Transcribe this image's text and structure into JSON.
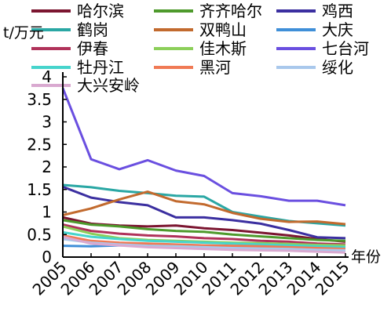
{
  "chart_data": {
    "type": "line",
    "ylabel": "t/万元",
    "xlabel": "年份",
    "x": [
      "2005",
      "2006",
      "2007",
      "2008",
      "2009",
      "2010",
      "2011",
      "2012",
      "2013",
      "2014",
      "2015"
    ],
    "yticks": [
      "0",
      "0.5",
      "1",
      "1.5",
      "2",
      "2.5",
      "3",
      "3.5",
      "4"
    ],
    "ylim": [
      0,
      4
    ],
    "grid": false,
    "legend_position": "top",
    "series": [
      {
        "name": "哈尔滨",
        "color": "#7b1530",
        "values": [
          0.88,
          0.74,
          0.7,
          0.68,
          0.7,
          0.64,
          0.6,
          0.54,
          0.48,
          0.4,
          0.34
        ]
      },
      {
        "name": "齐齐哈尔",
        "color": "#4e9a2c",
        "values": [
          0.82,
          0.72,
          0.68,
          0.62,
          0.58,
          0.56,
          0.5,
          0.46,
          0.42,
          0.38,
          0.36
        ]
      },
      {
        "name": "鸡西",
        "color": "#3b2fa0",
        "values": [
          1.56,
          1.32,
          1.22,
          1.15,
          0.88,
          0.88,
          0.82,
          0.74,
          0.6,
          0.44,
          0.42
        ]
      },
      {
        "name": "鹤岗",
        "color": "#2aa7a4",
        "values": [
          1.6,
          1.55,
          1.47,
          1.42,
          1.36,
          1.34,
          1.0,
          0.9,
          0.8,
          0.75,
          0.7
        ]
      },
      {
        "name": "双鸭山",
        "color": "#c26a2e",
        "values": [
          0.93,
          1.08,
          1.28,
          1.45,
          1.24,
          1.17,
          0.98,
          0.85,
          0.78,
          0.79,
          0.73
        ]
      },
      {
        "name": "大庆",
        "color": "#3f8fd8",
        "values": [
          0.25,
          0.24,
          0.26,
          0.27,
          0.26,
          0.25,
          0.24,
          0.23,
          0.22,
          0.21,
          0.2
        ]
      },
      {
        "name": "伊春",
        "color": "#b0325a",
        "values": [
          0.72,
          0.58,
          0.52,
          0.48,
          0.46,
          0.42,
          0.4,
          0.36,
          0.34,
          0.3,
          0.28
        ]
      },
      {
        "name": "佳木斯",
        "color": "#8ccf5a",
        "values": [
          0.68,
          0.52,
          0.42,
          0.38,
          0.36,
          0.34,
          0.32,
          0.31,
          0.29,
          0.27,
          0.26
        ]
      },
      {
        "name": "七台河",
        "color": "#6a4fe0",
        "values": [
          3.75,
          2.17,
          1.95,
          2.15,
          1.92,
          1.8,
          1.42,
          1.35,
          1.25,
          1.25,
          1.15
        ]
      },
      {
        "name": "牡丹江",
        "color": "#46d4cc",
        "values": [
          0.55,
          0.45,
          0.4,
          0.36,
          0.34,
          0.32,
          0.3,
          0.28,
          0.26,
          0.24,
          0.22
        ]
      },
      {
        "name": "黑河",
        "color": "#f07a55",
        "values": [
          0.48,
          0.36,
          0.32,
          0.3,
          0.28,
          0.26,
          0.25,
          0.24,
          0.22,
          0.2,
          0.18
        ]
      },
      {
        "name": "绥化",
        "color": "#a9c8ec",
        "values": [
          0.4,
          0.32,
          0.28,
          0.25,
          0.24,
          0.22,
          0.2,
          0.19,
          0.18,
          0.16,
          0.15
        ]
      },
      {
        "name": "大兴安岭",
        "color": "#d9a9d0",
        "values": [
          0.45,
          0.3,
          0.26,
          0.22,
          0.2,
          0.18,
          0.16,
          0.15,
          0.14,
          0.12,
          0.1
        ]
      }
    ]
  }
}
